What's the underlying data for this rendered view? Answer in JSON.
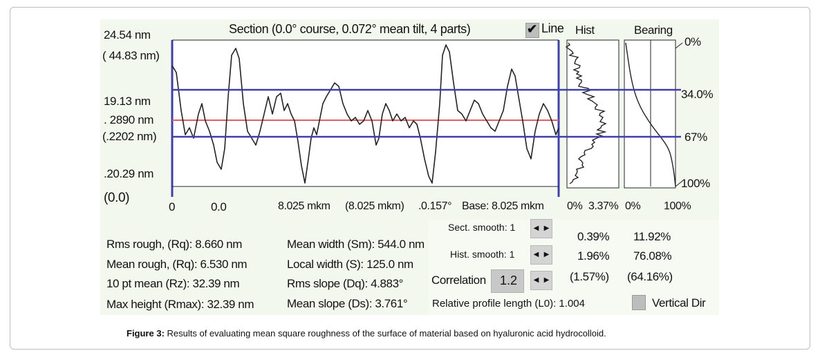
{
  "section": {
    "title": "Section (0.0° course,  0.072° mean tilt, 4 parts)",
    "line_toggle_label": "Line",
    "line_check_mark": "✔",
    "y_labels": {
      "top": "24.54 nm",
      "top_paren": "( 44.83 nm)",
      "mid_upper": "19.13 nm",
      "mid_red": ". 2890 nm",
      "mid_red_paren": "(.2202 nm)",
      "lower": ".20.29 nm",
      "bottom": "(0.0)"
    },
    "x_labels": {
      "start": "0",
      "start_value": "0.0",
      "span": "8.025 mkm",
      "span_paren": "(8.025 mkm)",
      "angle": ".0.157°",
      "base": "Base:  8.025 mkm"
    }
  },
  "histogram": {
    "title": "Hist",
    "x_min": "0%",
    "x_max": "3.37%"
  },
  "bearing": {
    "title": "Bearing",
    "x_min": "0%",
    "x_max": "100%",
    "right_labels": [
      "0%",
      "34.0%",
      "67%",
      "100%"
    ]
  },
  "stats": {
    "rms_rough": "Rms rough, (Rq): 8.660 nm",
    "mean_rough": "Mean rough, (Rq): 6.530 nm",
    "pt10_mean": "10 pt mean (Rz): 32.39 nm",
    "max_height": "Max height (Rmax): 32.39 nm",
    "mean_width": "Mean width (Sm): 544.0 nm",
    "local_width": "Local width (S): 125.0 nm",
    "rms_slope": "Rms slope (Dq): 4.883°",
    "mean_slope": "Mean slope (Ds): 3.761°"
  },
  "controls": {
    "sect_smooth": "Sect. smooth: 1",
    "hist_smooth": "Hist. smooth: 1",
    "correlation_label": "Correlation",
    "correlation_value": "1.2",
    "relative_length": "Relative profile length (L0):  1.004",
    "vertical_dir": "Vertical Dir",
    "spin_left": "◀",
    "spin_right": "▶"
  },
  "values_table": {
    "col1": [
      "0.39%",
      "1.96%",
      "(1.57%)"
    ],
    "col2": [
      "11.92%",
      "76.08%",
      "(64.16%)"
    ]
  },
  "caption": {
    "label": "Figure 3:",
    "text": " Results of evaluating mean square roughness of the surface of material based on hyaluronic acid hydrocolloid."
  },
  "colors": {
    "blue_line": "#3f3fa8",
    "red_line": "#e06060",
    "panel_bg": "#f3f8ef",
    "profile": "#222222"
  }
}
